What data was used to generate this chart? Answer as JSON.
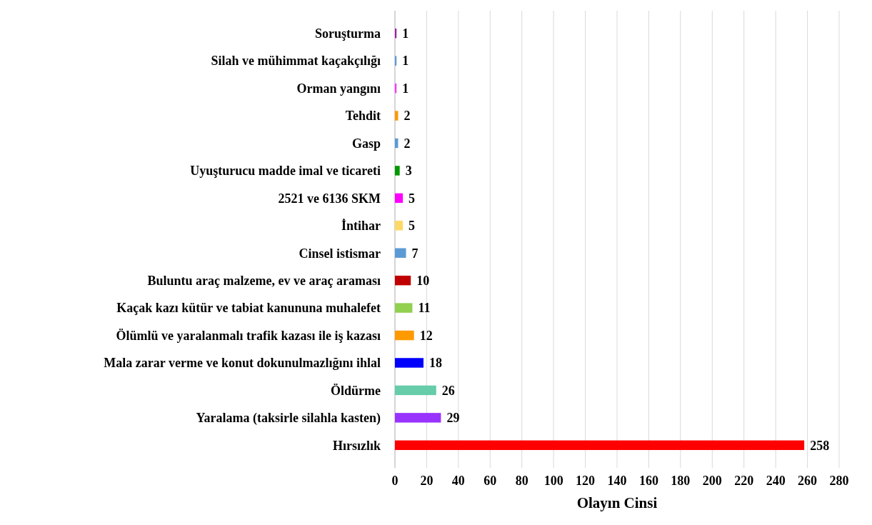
{
  "chart_data": {
    "type": "bar",
    "orientation": "horizontal",
    "xlabel": "Olayın Cinsi",
    "categories": [
      "Soruşturma",
      "Silah ve mühimmat kaçakçılığı",
      "Orman yangını",
      "Tehdit",
      "Gasp",
      "Uyuşturucu madde imal ve ticareti",
      "2521 ve 6136 SKM",
      "İntihar ",
      "Cinsel istismar",
      "Buluntu araç malzeme, ev ve araç araması",
      "Kaçak kazı kütür ve tabiat kanununa muhalefet",
      "Ölümlü ve yaralanmalı trafik kazası ile iş kazası",
      "Mala zarar verme ve konut dokunulmazlığını ihlal",
      "Öldürme",
      "Yaralama (taksirle silahla kasten)",
      "Hırsızlık"
    ],
    "values": [
      1,
      1,
      1,
      2,
      2,
      3,
      5,
      5,
      7,
      10,
      11,
      12,
      18,
      26,
      29,
      258
    ],
    "colors": [
      "#9b1fa0",
      "#5b9bd5",
      "#ff33ff",
      "#ff9900",
      "#5b9bd5",
      "#009900",
      "#ff00ff",
      "#ffd966",
      "#5b9bd5",
      "#c00000",
      "#92d050",
      "#ff9900",
      "#0000ff",
      "#66ccaa",
      "#9933ff",
      "#ff0000"
    ],
    "xlim": [
      0,
      280
    ],
    "xticks": [
      0,
      20,
      40,
      60,
      80,
      100,
      120,
      140,
      160,
      180,
      200,
      220,
      240,
      260,
      280
    ],
    "grid": "x",
    "data_labels": true
  }
}
